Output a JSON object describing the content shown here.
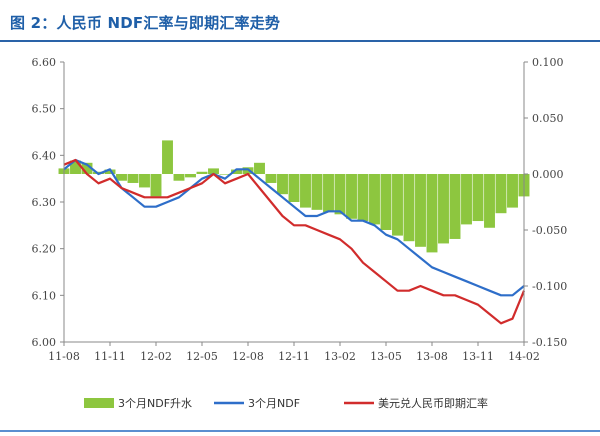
{
  "header": {
    "title": "图 2：人民币 NDF汇率与即期汇率走势"
  },
  "colors": {
    "title": "#1f5fa8",
    "swap_points": "#8dc63f",
    "ndf": "#2e6ec9",
    "spot": "#d12c2c"
  },
  "chart_data": {
    "type": "line",
    "title": "",
    "x_ticks": [
      "11-08",
      "11-11",
      "12-02",
      "12-05",
      "12-08",
      "12-11",
      "13-02",
      "13-05",
      "13-08",
      "13-11",
      "14-02"
    ],
    "left_axis": {
      "ticks": [
        "6.00",
        "6.10",
        "6.20",
        "6.30",
        "6.40",
        "6.50",
        "6.60"
      ],
      "ylim": [
        6.0,
        6.6
      ]
    },
    "right_axis": {
      "ticks": [
        "-0.150",
        "-0.100",
        "-0.050",
        "0.000",
        "0.050",
        "0.100"
      ],
      "ylim": [
        -0.15,
        0.1
      ]
    },
    "grid": false,
    "legend": "bottom",
    "x_index": [
      0,
      1,
      2,
      3,
      4,
      5,
      6,
      7,
      8,
      9,
      10,
      11,
      12,
      13,
      14,
      15,
      16,
      17,
      18,
      19,
      20,
      21,
      22,
      23,
      24,
      25,
      26,
      27,
      28,
      29,
      30,
      31,
      32,
      33,
      34,
      35,
      36,
      37,
      38,
      39,
      40
    ],
    "series": [
      {
        "name": "3个月NDF升水",
        "type": "area",
        "axis": "right",
        "color": "#8dc63f",
        "values": [
          0.005,
          0.012,
          0.01,
          0.002,
          0.004,
          -0.006,
          -0.008,
          -0.012,
          -0.02,
          0.03,
          -0.006,
          -0.003,
          0.002,
          0.005,
          0.0,
          0.004,
          0.006,
          0.01,
          -0.008,
          -0.018,
          -0.025,
          -0.03,
          -0.032,
          -0.034,
          -0.036,
          -0.04,
          -0.042,
          -0.045,
          -0.05,
          -0.055,
          -0.06,
          -0.065,
          -0.07,
          -0.062,
          -0.058,
          -0.045,
          -0.042,
          -0.048,
          -0.035,
          -0.03,
          -0.02
        ]
      },
      {
        "name": "3个月NDF",
        "type": "line",
        "axis": "left",
        "color": "#2e6ec9",
        "values": [
          6.37,
          6.39,
          6.38,
          6.36,
          6.37,
          6.33,
          6.31,
          6.29,
          6.29,
          6.3,
          6.31,
          6.33,
          6.35,
          6.36,
          6.35,
          6.37,
          6.37,
          6.35,
          6.33,
          6.31,
          6.29,
          6.27,
          6.27,
          6.28,
          6.28,
          6.26,
          6.26,
          6.25,
          6.23,
          6.22,
          6.2,
          6.18,
          6.16,
          6.15,
          6.14,
          6.13,
          6.12,
          6.11,
          6.1,
          6.1,
          6.12
        ]
      },
      {
        "name": "美元兑人民币即期汇率",
        "type": "line",
        "axis": "left",
        "color": "#d12c2c",
        "values": [
          6.38,
          6.39,
          6.36,
          6.34,
          6.35,
          6.33,
          6.32,
          6.31,
          6.31,
          6.31,
          6.32,
          6.33,
          6.34,
          6.36,
          6.34,
          6.35,
          6.36,
          6.33,
          6.3,
          6.27,
          6.25,
          6.25,
          6.24,
          6.23,
          6.22,
          6.2,
          6.17,
          6.15,
          6.13,
          6.11,
          6.11,
          6.12,
          6.11,
          6.1,
          6.1,
          6.09,
          6.08,
          6.06,
          6.04,
          6.05,
          6.11
        ]
      }
    ]
  },
  "legend": {
    "items": [
      {
        "label": "3个月NDF升水",
        "kind": "area",
        "color": "#8dc63f"
      },
      {
        "label": "3个月NDF",
        "kind": "line",
        "color": "#2e6ec9"
      },
      {
        "label": "美元兑人民币即期汇率",
        "kind": "line",
        "color": "#d12c2c"
      }
    ]
  }
}
